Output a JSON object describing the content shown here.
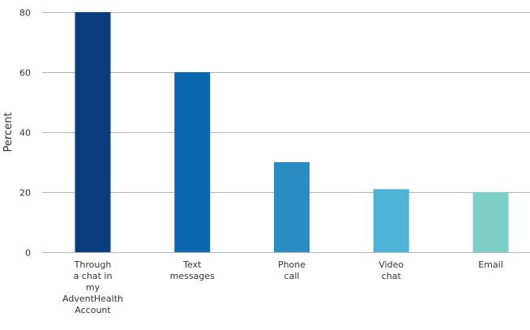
{
  "chart_data": {
    "type": "bar",
    "categories": [
      "Through a chat in my AdventHealth Account",
      "Text messages",
      "Phone call",
      "Video chat",
      "Email"
    ],
    "category_lines": [
      [
        "Through",
        "a chat in",
        "my",
        "AdventHealth",
        "Account"
      ],
      [
        "Text",
        "messages"
      ],
      [
        "Phone",
        "call"
      ],
      [
        "Video",
        "chat"
      ],
      [
        "Email"
      ]
    ],
    "values": [
      80,
      60,
      30,
      21,
      20
    ],
    "colors": [
      "#0a3d7d",
      "#0a67ad",
      "#2a8dc1",
      "#4db3d6",
      "#7ccec6"
    ],
    "ylabel": "Percent",
    "xlabel": "",
    "ylim": [
      0,
      80
    ],
    "yticks": [
      0,
      20,
      40,
      60,
      80
    ],
    "grid": true,
    "legend": "none"
  }
}
